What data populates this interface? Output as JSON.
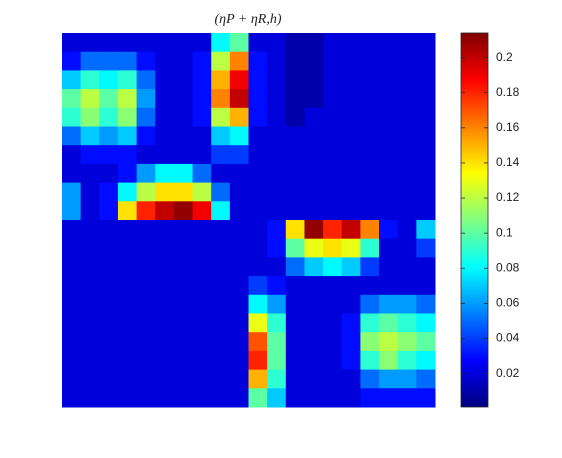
{
  "chart_data": {
    "type": "heatmap",
    "title": "(ηP + ηR,h)",
    "colormap": "jet",
    "clim": [
      0.001,
      0.214
    ],
    "cticks": [
      0.02,
      0.04,
      0.06,
      0.08,
      0.1,
      0.12,
      0.14,
      0.16,
      0.18,
      0.2
    ],
    "z": [
      [
        0.02,
        0.02,
        0.02,
        0.02,
        0.02,
        0.02,
        0.02,
        0.02,
        0.08,
        0.1,
        0.02,
        0.02,
        0.01,
        0.01,
        0.02,
        0.02,
        0.02,
        0.02,
        0.02,
        0.02
      ],
      [
        0.03,
        0.05,
        0.05,
        0.05,
        0.03,
        0.02,
        0.02,
        0.03,
        0.12,
        0.16,
        0.03,
        0.02,
        0.01,
        0.01,
        0.02,
        0.02,
        0.02,
        0.02,
        0.02,
        0.02
      ],
      [
        0.07,
        0.09,
        0.08,
        0.09,
        0.05,
        0.02,
        0.02,
        0.03,
        0.15,
        0.19,
        0.03,
        0.02,
        0.01,
        0.01,
        0.02,
        0.02,
        0.02,
        0.02,
        0.02,
        0.02
      ],
      [
        0.1,
        0.12,
        0.1,
        0.12,
        0.06,
        0.02,
        0.02,
        0.03,
        0.16,
        0.2,
        0.03,
        0.02,
        0.01,
        0.01,
        0.02,
        0.02,
        0.02,
        0.02,
        0.02,
        0.02
      ],
      [
        0.09,
        0.11,
        0.09,
        0.11,
        0.05,
        0.02,
        0.02,
        0.03,
        0.12,
        0.15,
        0.03,
        0.02,
        0.01,
        0.02,
        0.02,
        0.02,
        0.02,
        0.02,
        0.02,
        0.02
      ],
      [
        0.05,
        0.07,
        0.06,
        0.07,
        0.03,
        0.02,
        0.02,
        0.02,
        0.07,
        0.08,
        0.02,
        0.02,
        0.02,
        0.02,
        0.02,
        0.02,
        0.02,
        0.02,
        0.02,
        0.02
      ],
      [
        0.02,
        0.03,
        0.03,
        0.03,
        0.02,
        0.02,
        0.02,
        0.02,
        0.04,
        0.04,
        0.02,
        0.02,
        0.02,
        0.02,
        0.02,
        0.02,
        0.02,
        0.02,
        0.02,
        0.02
      ],
      [
        0.02,
        0.02,
        0.02,
        0.03,
        0.06,
        0.08,
        0.08,
        0.05,
        0.02,
        0.02,
        0.02,
        0.02,
        0.02,
        0.02,
        0.02,
        0.02,
        0.02,
        0.02,
        0.02,
        0.02
      ],
      [
        0.06,
        0.02,
        0.03,
        0.08,
        0.12,
        0.14,
        0.14,
        0.12,
        0.05,
        0.02,
        0.02,
        0.02,
        0.02,
        0.02,
        0.02,
        0.02,
        0.02,
        0.02,
        0.02,
        0.02
      ],
      [
        0.06,
        0.02,
        0.03,
        0.14,
        0.18,
        0.2,
        0.21,
        0.19,
        0.08,
        0.02,
        0.02,
        0.02,
        0.02,
        0.02,
        0.02,
        0.02,
        0.02,
        0.02,
        0.02,
        0.02
      ],
      [
        0.02,
        0.02,
        0.02,
        0.02,
        0.02,
        0.02,
        0.02,
        0.02,
        0.02,
        0.02,
        0.02,
        0.03,
        0.14,
        0.21,
        0.18,
        0.2,
        0.16,
        0.03,
        0.02,
        0.07
      ],
      [
        0.02,
        0.02,
        0.02,
        0.02,
        0.02,
        0.02,
        0.02,
        0.02,
        0.02,
        0.02,
        0.02,
        0.03,
        0.1,
        0.13,
        0.14,
        0.13,
        0.09,
        0.02,
        0.02,
        0.04
      ],
      [
        0.02,
        0.02,
        0.02,
        0.02,
        0.02,
        0.02,
        0.02,
        0.02,
        0.02,
        0.02,
        0.02,
        0.02,
        0.05,
        0.07,
        0.08,
        0.07,
        0.04,
        0.02,
        0.02,
        0.02
      ],
      [
        0.02,
        0.02,
        0.02,
        0.02,
        0.02,
        0.02,
        0.02,
        0.02,
        0.02,
        0.02,
        0.04,
        0.03,
        0.02,
        0.02,
        0.02,
        0.02,
        0.02,
        0.02,
        0.02,
        0.02
      ],
      [
        0.02,
        0.02,
        0.02,
        0.02,
        0.02,
        0.02,
        0.02,
        0.02,
        0.02,
        0.02,
        0.08,
        0.06,
        0.02,
        0.02,
        0.02,
        0.02,
        0.05,
        0.06,
        0.06,
        0.05
      ],
      [
        0.02,
        0.02,
        0.02,
        0.02,
        0.02,
        0.02,
        0.02,
        0.02,
        0.02,
        0.02,
        0.13,
        0.09,
        0.02,
        0.02,
        0.02,
        0.03,
        0.09,
        0.1,
        0.09,
        0.08
      ],
      [
        0.02,
        0.02,
        0.02,
        0.02,
        0.02,
        0.02,
        0.02,
        0.02,
        0.02,
        0.02,
        0.17,
        0.1,
        0.02,
        0.02,
        0.02,
        0.03,
        0.11,
        0.12,
        0.11,
        0.1
      ],
      [
        0.02,
        0.02,
        0.02,
        0.02,
        0.02,
        0.02,
        0.02,
        0.02,
        0.02,
        0.02,
        0.18,
        0.1,
        0.02,
        0.02,
        0.02,
        0.03,
        0.09,
        0.11,
        0.09,
        0.08
      ],
      [
        0.02,
        0.02,
        0.02,
        0.02,
        0.02,
        0.02,
        0.02,
        0.02,
        0.02,
        0.02,
        0.15,
        0.09,
        0.02,
        0.02,
        0.02,
        0.02,
        0.05,
        0.06,
        0.06,
        0.05
      ],
      [
        0.02,
        0.02,
        0.02,
        0.02,
        0.02,
        0.02,
        0.02,
        0.02,
        0.02,
        0.02,
        0.1,
        0.07,
        0.02,
        0.02,
        0.02,
        0.02,
        0.03,
        0.03,
        0.03,
        0.03
      ]
    ]
  }
}
